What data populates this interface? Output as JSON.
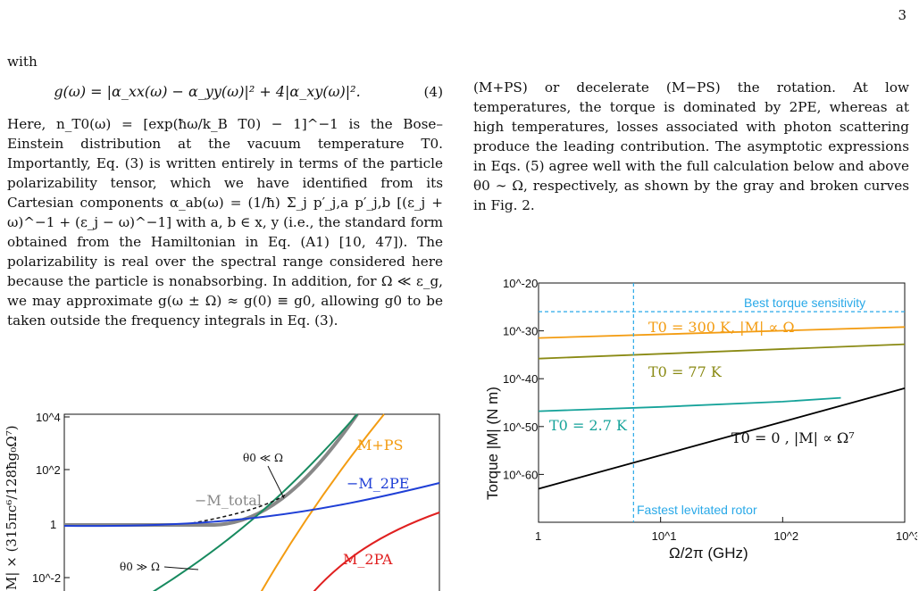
{
  "page_number": "3",
  "left_column": {
    "with": "with",
    "equation": "g(ω) = |α_xx(ω) − α_yy(ω)|² + 4|α_xy(ω)|².",
    "equation_number": "(4)",
    "paragraph": "Here, n_T0(ω) = [exp(ħω/k_B T0) − 1]^−1 is the Bose–Einstein distribution at the vacuum temperature T0. Importantly, Eq. (3) is written entirely in terms of the particle polarizability tensor, which we have identified from its Cartesian components α_ab(ω) = (1/ħ) Σ_j p′_j,a p′_j,b [(ε_j + ω)^−1 + (ε_j − ω)^−1] with a, b ∈ x, y (i.e., the standard form obtained from the Hamiltonian in Eq. (A1) [10, 47]). The polarizability is real over the spectral range considered here because the particle is nonabsorbing. In addition, for Ω ≪ ε_g, we may approximate g(ω ± Ω) ≈ g(0) ≡ g0, allowing g0 to be taken outside the frequency integrals in Eq. (3)."
  },
  "right_column": {
    "paragraph": "(M+PS) or decelerate (M−PS) the rotation. At low temperatures, the torque is dominated by 2PE, whereas at high temperatures, losses associated with photon scattering produce the leading contribution. The asymptotic expressions in Eqs. (5) agree well with the full calculation below and above θ0 ∼ Ω, respectively, as shown by the gray and broken curves in Fig. 2."
  },
  "chart_data": [
    {
      "type": "line",
      "title": "",
      "xlabel": "",
      "ylabel": "|M| × (315πc⁶/128ħg₀Ω⁷)",
      "y_scale": "log",
      "y_ticks": [
        "10^4",
        "10^2",
        "1",
        "10^-2"
      ],
      "series": [
        {
          "name": "−M_total",
          "color": "#888888"
        },
        {
          "name": "M+PS",
          "color": "#f39c12"
        },
        {
          "name": "−M_2PE",
          "color": "#1f3fd6"
        },
        {
          "name": "M_2PA",
          "color": "#e02020"
        }
      ],
      "annotations": [
        "θ0 ≪ Ω",
        "θ0 ≫ Ω"
      ]
    },
    {
      "type": "line",
      "title": "",
      "xlabel": "Ω/2π (GHz)",
      "ylabel": "Torque  |M| (N m)",
      "x_scale": "log",
      "y_scale": "log",
      "xlim": [
        1,
        1000
      ],
      "ylim": [
        1e-70,
        1e-20
      ],
      "x_ticks": [
        "1",
        "10^1",
        "10^2",
        "10^3"
      ],
      "y_ticks": [
        "10^-20",
        "10^-30",
        "10^-40",
        "10^-50",
        "10^-60"
      ],
      "series": [
        {
          "name": "T0 = 300 K, |M| ∝ Ω",
          "color": "#f39c12",
          "x": [
            1,
            1000
          ],
          "y": [
            -31.5,
            -29.2
          ]
        },
        {
          "name": "T0 = 77 K",
          "color": "#8a8a14",
          "x": [
            1,
            1000
          ],
          "y": [
            -35.8,
            -32.8
          ]
        },
        {
          "name": "T0 = 2.7 K",
          "color": "#16a39a",
          "x": [
            1,
            10,
            100,
            300
          ],
          "y": [
            -46.8,
            -45.9,
            -44.8,
            -44.0
          ]
        },
        {
          "name": "T0 = 0 , |M| ∝ Ω⁷",
          "color": "#000000",
          "x": [
            1,
            1000
          ],
          "y": [
            -63.0,
            -42.0
          ]
        }
      ],
      "reference_lines": [
        {
          "label": "Best torque sensitivity",
          "orientation": "horizontal",
          "value": "1e-26",
          "color": "#29a9e8"
        },
        {
          "label": "Fastest levitated rotor",
          "orientation": "vertical",
          "value": "6",
          "color": "#29a9e8"
        }
      ]
    }
  ]
}
